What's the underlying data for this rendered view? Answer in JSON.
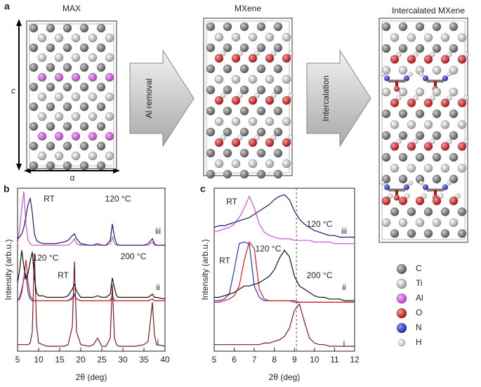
{
  "panel_a": {
    "label": "a",
    "structures": [
      "MAX",
      "MXene",
      "Intercalated MXene"
    ],
    "steps": [
      "Al removal",
      "Intercalation"
    ],
    "axes": [
      "c",
      "α"
    ]
  },
  "legend": [
    "C",
    "Ti",
    "Al",
    "O",
    "N",
    "H"
  ],
  "chart_data": [
    {
      "type": "line",
      "panel_label": "b",
      "xlabel": "2θ (deg)",
      "ylabel": "Intensity (arb.u.)",
      "xlim": [
        5,
        40
      ],
      "xticks": [
        5,
        10,
        15,
        20,
        25,
        30,
        35,
        40
      ],
      "ylim": [
        0,
        10
      ],
      "annotations": [
        "i",
        "ii",
        "iii"
      ],
      "x": [
        5,
        5.5,
        6,
        6.5,
        7,
        7.5,
        8,
        8.5,
        9,
        9.5,
        10,
        11,
        12,
        14,
        16,
        17,
        18,
        18.5,
        19,
        20,
        22,
        23,
        24,
        25,
        26,
        27,
        27.5,
        28,
        28.5,
        29,
        31,
        33,
        35,
        36,
        37,
        37.5,
        38,
        40
      ],
      "series": [
        {
          "color": "#7a1c1c",
          "values": [
            0.4,
            0.4,
            0.4,
            0.4,
            0.4,
            0.4,
            0.5,
            1.2,
            6.0,
            1.6,
            0.5,
            0.4,
            0.3,
            0.3,
            0.3,
            0.4,
            1.5,
            5.5,
            1.2,
            0.4,
            0.3,
            0.4,
            0.8,
            0.3,
            0.3,
            0.8,
            4.1,
            0.8,
            0.4,
            0.3,
            0.3,
            0.3,
            0.4,
            0.6,
            3.0,
            1.0,
            0.4,
            0.3
          ]
        },
        {
          "name": "RT",
          "color": "#2233dd",
          "values": [
            3.1,
            3.3,
            3.8,
            4.4,
            4.7,
            3.6,
            3.2,
            3.1,
            3.1,
            3.1,
            3.1,
            3.1,
            3.1,
            3.1,
            3.1,
            3.1,
            3.3,
            3.5,
            3.2,
            3.1,
            3.1,
            3.1,
            3.1,
            3.1,
            3.1,
            3.1,
            3.4,
            3.1,
            3.1,
            3.1,
            3.1,
            3.1,
            3.1,
            3.1,
            3.2,
            3.1,
            3.1,
            3.1
          ]
        },
        {
          "name": "120 °C",
          "color": "#dd1a1a",
          "values": [
            3.1,
            3.2,
            3.6,
            4.5,
            5.6,
            4.2,
            3.4,
            3.2,
            3.1,
            3.1,
            3.1,
            3.1,
            3.1,
            3.1,
            3.1,
            3.1,
            3.2,
            3.4,
            3.2,
            3.1,
            3.1,
            3.1,
            3.1,
            3.1,
            3.1,
            3.1,
            3.3,
            3.1,
            3.1,
            3.1,
            3.1,
            3.1,
            3.1,
            3.1,
            3.2,
            3.1,
            3.1,
            3.1
          ]
        },
        {
          "name": "200 °C",
          "color": "#111111",
          "values": [
            4.2,
            5.0,
            6.2,
            5.2,
            4.4,
            4.8,
            5.5,
            6.1,
            4.5,
            3.6,
            3.4,
            3.4,
            3.3,
            3.3,
            3.3,
            3.4,
            3.8,
            4.1,
            3.7,
            3.3,
            3.3,
            3.3,
            3.4,
            3.3,
            3.3,
            3.5,
            4.5,
            3.9,
            3.4,
            3.3,
            3.3,
            3.3,
            3.3,
            3.3,
            3.5,
            3.3,
            3.3,
            3.2
          ]
        },
        {
          "name": "RT",
          "color": "#d14fd6",
          "values": [
            6.6,
            7.5,
            8.8,
            9.8,
            7.8,
            6.8,
            6.6,
            6.5,
            6.5,
            6.5,
            6.5,
            6.5,
            6.5,
            6.5,
            6.5,
            6.5,
            6.7,
            6.9,
            6.6,
            6.5,
            6.5,
            6.5,
            6.5,
            6.5,
            6.5,
            6.6,
            7.0,
            6.6,
            6.5,
            6.5,
            6.5,
            6.5,
            6.5,
            6.5,
            6.7,
            6.5,
            6.5,
            6.5
          ]
        },
        {
          "name": "120 °C",
          "color": "#1a1a6e",
          "values": [
            6.9,
            7.0,
            7.2,
            7.6,
            8.3,
            9.0,
            9.4,
            8.5,
            7.2,
            6.8,
            6.7,
            6.6,
            6.6,
            6.6,
            6.7,
            6.8,
            7.1,
            7.2,
            6.9,
            6.6,
            6.5,
            6.5,
            6.6,
            6.5,
            6.5,
            6.8,
            7.8,
            7.0,
            6.6,
            6.5,
            6.5,
            6.5,
            6.5,
            6.6,
            6.9,
            6.6,
            6.5,
            6.5
          ]
        }
      ]
    },
    {
      "type": "line",
      "panel_label": "c",
      "xlabel": "2θ (deg)",
      "ylabel": "Intensity (arb.u.)",
      "xlim": [
        5,
        12
      ],
      "xticks": [
        5,
        6,
        7,
        8,
        9,
        10,
        11,
        12
      ],
      "ylim": [
        0,
        10
      ],
      "vline": 9.1,
      "annotations": [
        "i",
        "ii",
        "iii"
      ],
      "x": [
        5,
        5.25,
        5.5,
        5.75,
        6,
        6.25,
        6.5,
        6.75,
        7,
        7.25,
        7.5,
        7.75,
        8,
        8.25,
        8.5,
        8.75,
        9,
        9.25,
        9.5,
        9.75,
        10,
        10.25,
        10.5,
        10.75,
        11,
        11.25,
        11.5,
        11.75,
        12
      ],
      "series": [
        {
          "color": "#7a1c1c",
          "values": [
            0.4,
            0.4,
            0.4,
            0.4,
            0.4,
            0.4,
            0.4,
            0.4,
            0.4,
            0.4,
            0.5,
            0.5,
            0.6,
            0.7,
            0.9,
            1.4,
            2.5,
            2.9,
            1.8,
            0.8,
            0.5,
            0.4,
            0.4,
            0.3,
            0.3,
            0.3,
            0.3,
            0.3,
            0.3
          ]
        },
        {
          "name": "RT",
          "color": "#2233dd",
          "values": [
            3.1,
            3.1,
            3.2,
            3.5,
            5.0,
            6.6,
            6.7,
            6.6,
            4.0,
            3.3,
            3.1,
            3.1,
            3.1,
            3.1,
            3.1,
            3.1,
            3.1,
            3.0,
            3.0,
            3.0,
            3.0,
            3.0,
            3.0,
            3.0,
            3.0,
            3.0,
            3.0,
            3.0,
            3.0
          ]
        },
        {
          "name": "120 °C",
          "color": "#dd1a1a",
          "values": [
            3.0,
            3.0,
            3.1,
            3.2,
            3.4,
            4.0,
            5.6,
            6.7,
            6.3,
            3.8,
            3.2,
            3.1,
            3.1,
            3.1,
            3.1,
            3.1,
            3.0,
            3.0,
            3.0,
            3.0,
            3.0,
            3.0,
            3.0,
            3.0,
            3.0,
            3.0,
            3.0,
            3.0,
            3.0
          ]
        },
        {
          "name": "200 °C",
          "color": "#111111",
          "values": [
            3.3,
            3.3,
            3.4,
            3.5,
            3.6,
            3.8,
            4.0,
            4.0,
            4.1,
            4.2,
            4.4,
            4.6,
            5.0,
            5.7,
            6.2,
            5.8,
            4.6,
            4.0,
            3.8,
            3.6,
            3.4,
            3.3,
            3.3,
            3.2,
            3.2,
            3.2,
            3.1,
            3.1,
            3.1
          ]
        },
        {
          "name": "RT",
          "color": "#d14fd6",
          "values": [
            7.3,
            7.4,
            7.5,
            7.6,
            7.8,
            8.2,
            8.8,
            9.5,
            8.8,
            7.8,
            7.3,
            7.1,
            7.0,
            6.9,
            6.9,
            6.9,
            6.8,
            6.8,
            6.8,
            6.8,
            6.7,
            6.7,
            6.7,
            6.7,
            6.6,
            6.6,
            6.6,
            6.6,
            6.6
          ]
        },
        {
          "name": "120 °C",
          "color": "#1a1a6e",
          "values": [
            7.6,
            7.7,
            7.7,
            7.8,
            7.9,
            8.0,
            8.1,
            8.2,
            8.4,
            8.6,
            8.8,
            9.0,
            9.3,
            9.5,
            9.6,
            9.3,
            8.6,
            8.1,
            7.8,
            7.6,
            7.4,
            7.3,
            7.2,
            7.1,
            7.1,
            7.0,
            7.0,
            7.0,
            7.0
          ]
        }
      ]
    }
  ]
}
